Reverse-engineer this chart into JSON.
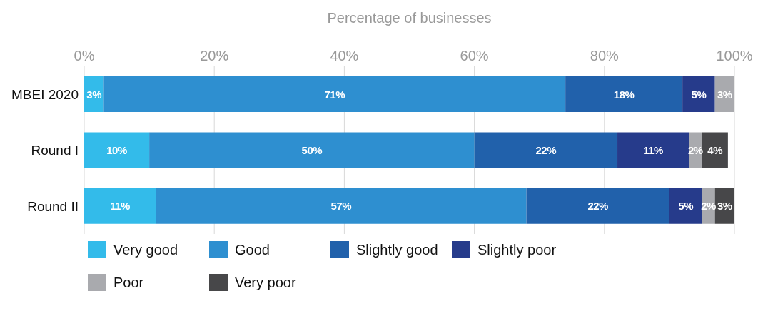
{
  "chart_data": {
    "type": "bar",
    "orientation": "horizontal",
    "stacked": true,
    "xlabel": "Percentage of businesses",
    "categories": [
      "MBEI 2020",
      "Round I",
      "Round II"
    ],
    "xlim": [
      0,
      100
    ],
    "xticks": [
      {
        "value": 0,
        "label": "0%"
      },
      {
        "value": 20,
        "label": "20%"
      },
      {
        "value": 40,
        "label": "40%"
      },
      {
        "value": 60,
        "label": "60%"
      },
      {
        "value": 80,
        "label": "80%"
      },
      {
        "value": 100,
        "label": "100%"
      }
    ],
    "grid": "x",
    "legend": "bottom",
    "series": [
      {
        "name": "Very good",
        "color": "#33bbea",
        "values": [
          3,
          10,
          11
        ],
        "value_labels": [
          "3%",
          "10%",
          "11%"
        ]
      },
      {
        "name": "Good",
        "color": "#2e8fd0",
        "values": [
          71,
          50,
          57
        ],
        "value_labels": [
          "71%",
          "50%",
          "57%"
        ]
      },
      {
        "name": "Slightly good",
        "color": "#2161ab",
        "values": [
          18,
          22,
          22
        ],
        "value_labels": [
          "18%",
          "22%",
          "22%"
        ]
      },
      {
        "name": "Slightly poor",
        "color": "#263b8b",
        "values": [
          5,
          11,
          5
        ],
        "value_labels": [
          "5%",
          "11%",
          "5%"
        ]
      },
      {
        "name": "Poor",
        "color": "#a9aaae",
        "values": [
          3,
          2,
          2
        ],
        "value_labels": [
          "3%",
          "2%",
          "2%"
        ]
      },
      {
        "name": "Very poor",
        "color": "#474749",
        "values": [
          null,
          4,
          3
        ],
        "value_labels": [
          null,
          "4%",
          "3%"
        ]
      }
    ]
  }
}
